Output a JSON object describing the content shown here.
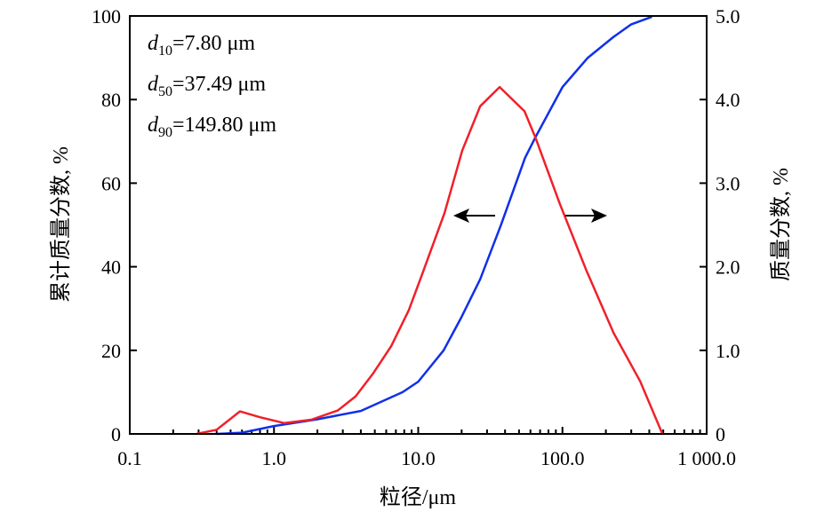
{
  "chart_data": {
    "type": "line",
    "xlabel": "粒径/μm",
    "ylabel_left": "累计质量分数, %",
    "ylabel_right": "质量分数, %",
    "xscale": "log",
    "xlim": [
      0.1,
      1000
    ],
    "ylim_left": [
      0,
      100
    ],
    "ylim_right": [
      0,
      5
    ],
    "x_ticks": [
      0.1,
      1,
      10,
      100,
      1000
    ],
    "x_tick_labels": [
      "0.1",
      "1.0",
      "10.0",
      "100.0",
      "1 000.0"
    ],
    "y_left_ticks": [
      0,
      20,
      40,
      60,
      80,
      100
    ],
    "y_left_tick_labels": [
      "0",
      "20",
      "40",
      "60",
      "80",
      "100"
    ],
    "y_right_ticks": [
      0,
      1,
      2,
      3,
      4,
      5
    ],
    "y_right_tick_labels": [
      "0",
      "1.0",
      "2.0",
      "3.0",
      "4.0",
      "5.0"
    ],
    "grid": false,
    "annotations": [
      {
        "sym": "d",
        "sub": "10",
        "text": "=7.80 μm"
      },
      {
        "sym": "d",
        "sub": "50",
        "text": "=37.49 μm"
      },
      {
        "sym": "d",
        "sub": "90",
        "text": "=149.80 μm"
      }
    ],
    "series": [
      {
        "axis": "left",
        "color": "#1030e8",
        "x": [
          0.4,
          0.6,
          1.0,
          2.0,
          4.0,
          7.8,
          10,
          15,
          20,
          26.9,
          37.5,
          55,
          65,
          100,
          150,
          226,
          300,
          417
        ],
        "y": [
          0,
          0.3,
          1.9,
          3.5,
          5.5,
          10,
          12.5,
          20,
          28,
          37,
          50,
          66,
          71,
          83,
          90,
          95,
          98,
          99.8
        ]
      },
      {
        "axis": "right",
        "color": "#f0202a",
        "x": [
          0.29,
          0.4,
          0.58,
          0.8,
          1.18,
          1.81,
          2.77,
          3.68,
          4.9,
          6.5,
          8.6,
          10.7,
          15.2,
          20.2,
          26.9,
          36.7,
          54.6,
          64.8,
          96,
          147,
          226,
          346,
          493
        ],
        "y": [
          0,
          0.05,
          0.27,
          0.2,
          0.13,
          0.17,
          0.28,
          0.45,
          0.73,
          1.05,
          1.48,
          1.92,
          2.64,
          3.39,
          3.92,
          4.15,
          3.86,
          3.55,
          2.75,
          1.95,
          1.21,
          0.63,
          0
        ]
      }
    ]
  }
}
